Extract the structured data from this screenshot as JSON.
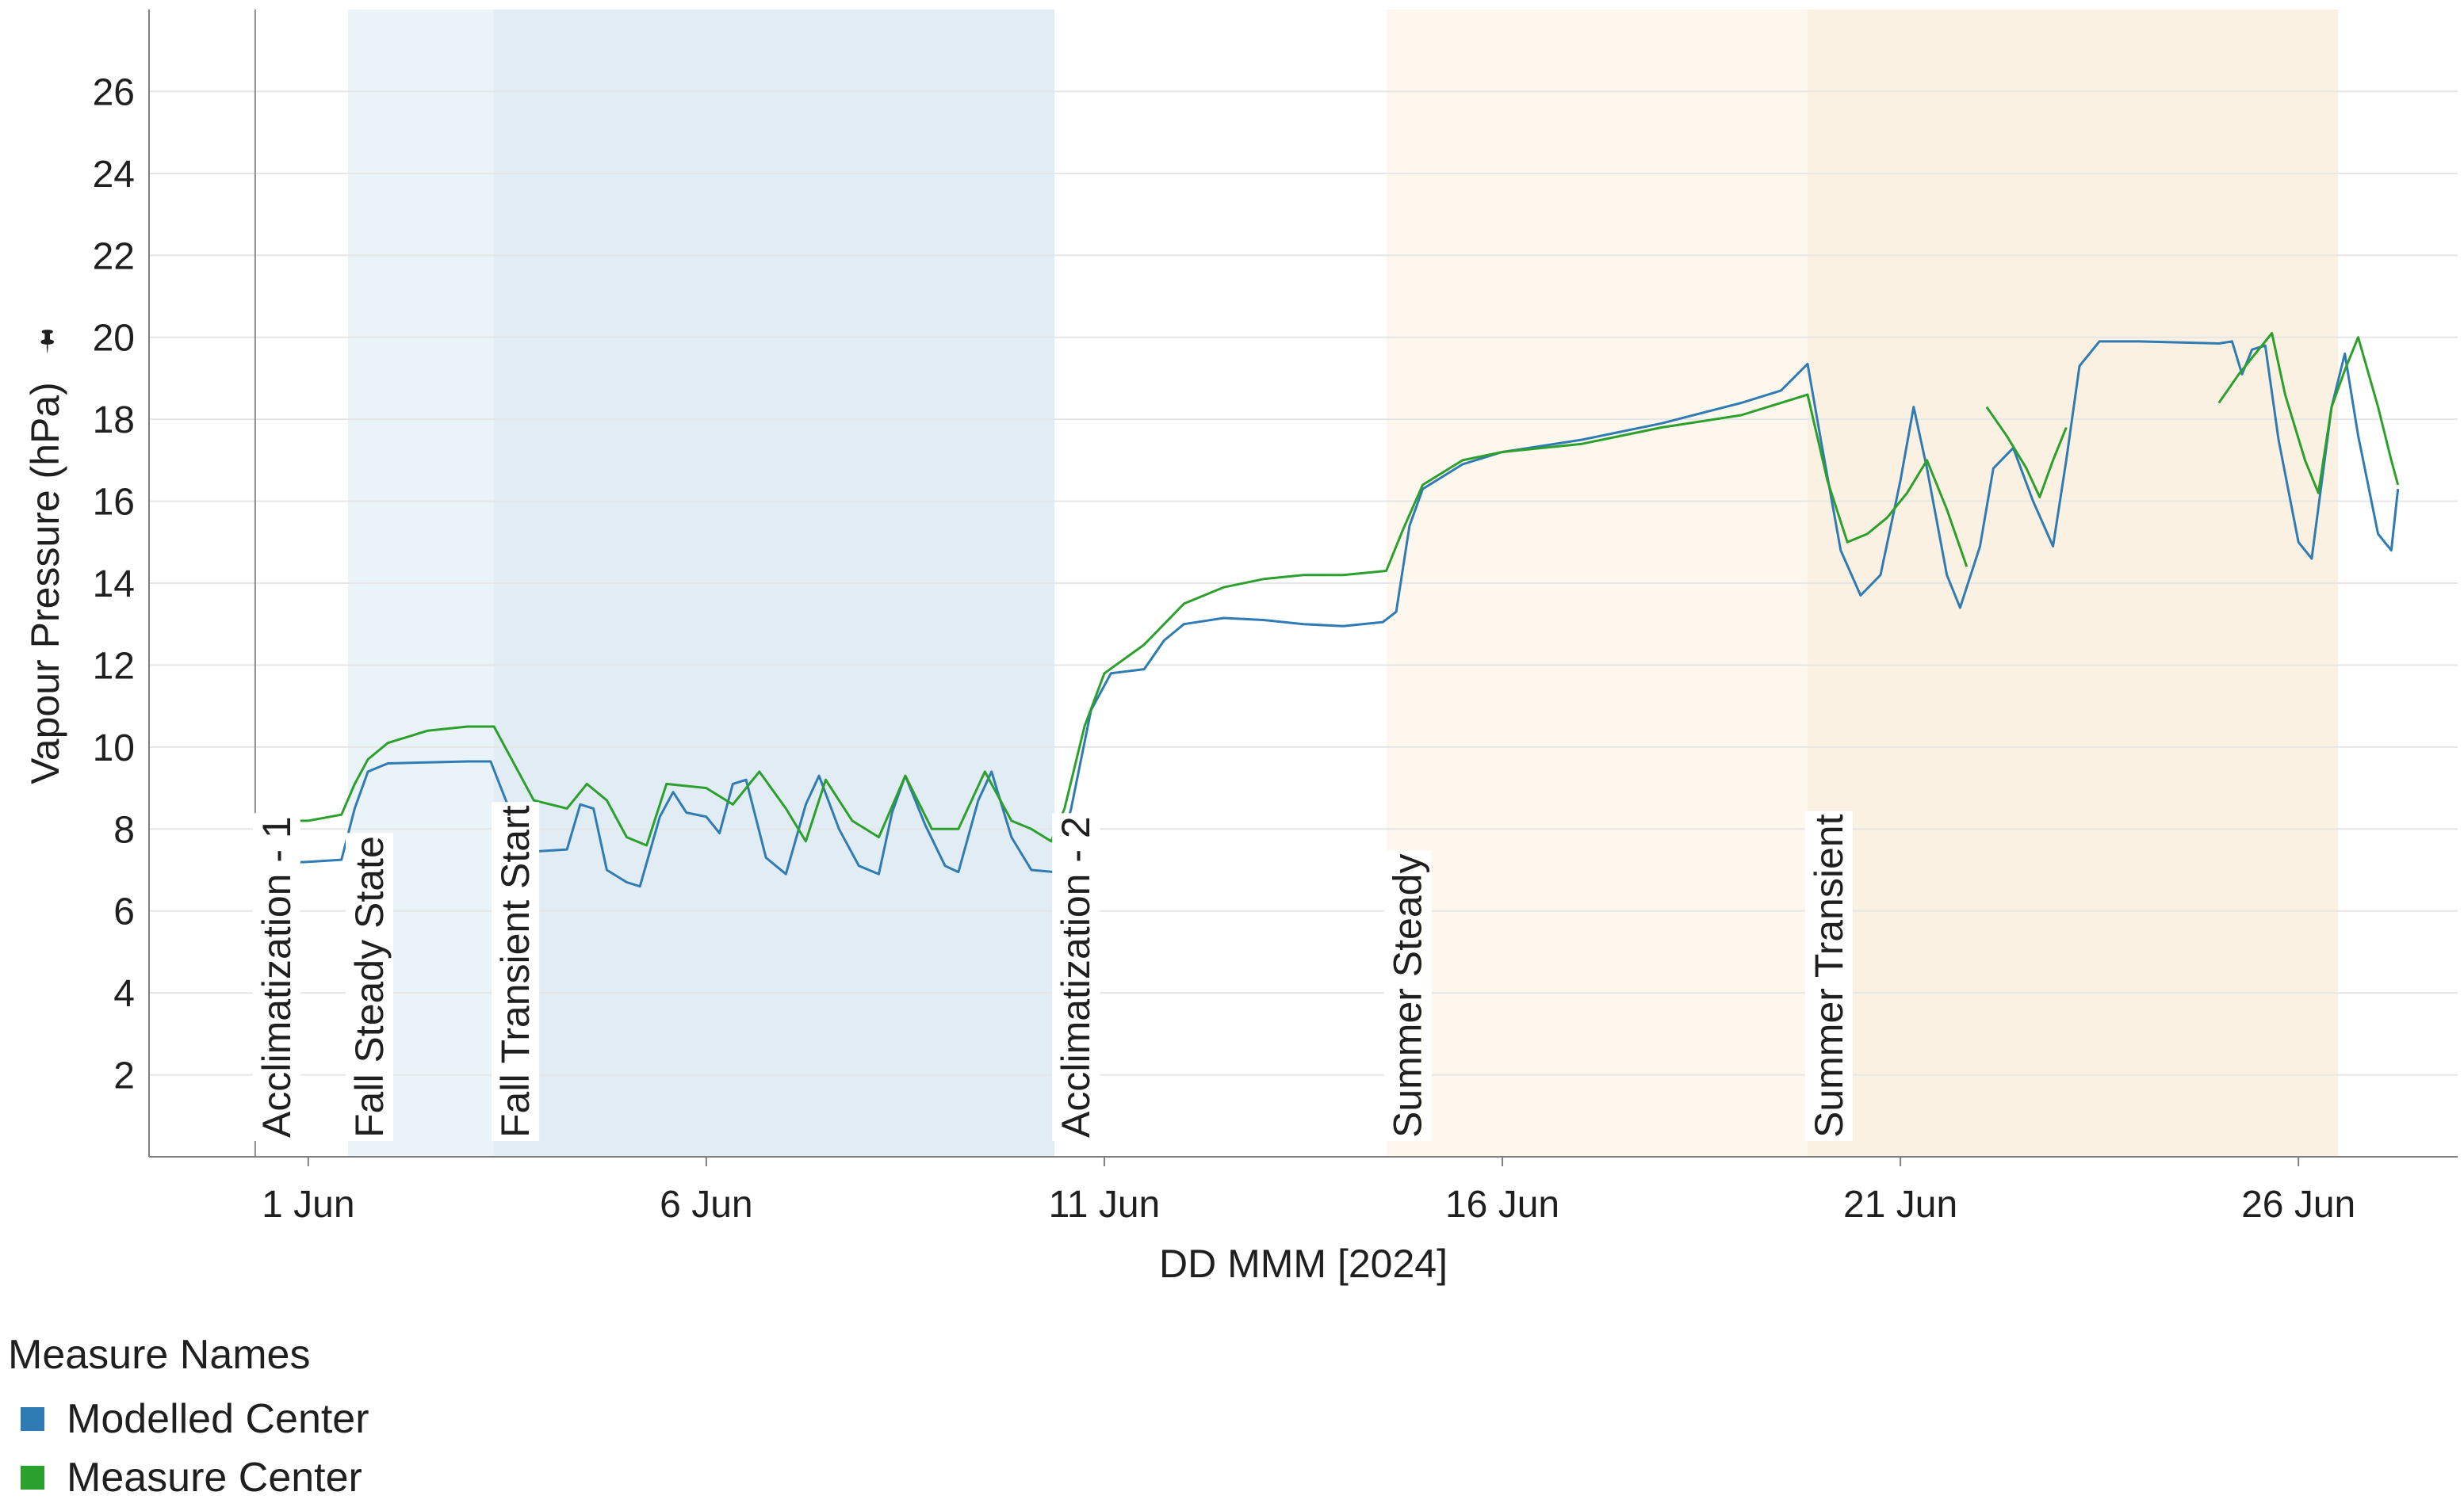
{
  "chart_data": {
    "type": "line",
    "title": "",
    "xlabel": "DD MMM [2024]",
    "ylabel": "Vapour Pressure (hPa)",
    "ylim": [
      0,
      28
    ],
    "xlim": [
      "2024-05-30",
      "2024-06-28"
    ],
    "grid": true,
    "y_ticks": [
      2,
      4,
      6,
      8,
      10,
      12,
      14,
      16,
      18,
      20,
      22,
      24,
      26
    ],
    "x_ticks": [
      {
        "date": "2024-06-01",
        "label": "1 Jun"
      },
      {
        "date": "2024-06-06",
        "label": "6 Jun"
      },
      {
        "date": "2024-06-11",
        "label": "11 Jun"
      },
      {
        "date": "2024-06-16",
        "label": "16 Jun"
      },
      {
        "date": "2024-06-21",
        "label": "21 Jun"
      },
      {
        "date": "2024-06-26",
        "label": "26 Jun"
      }
    ],
    "reference_line_date": "2024-05-31 08:00",
    "bands": [
      {
        "label": "Acclimatization - 1",
        "start": "2024-05-31 08:00",
        "end": "2024-06-01 12:00",
        "color": "#ffffff"
      },
      {
        "label": "Fall Steady State",
        "start": "2024-06-01 12:00",
        "end": "2024-06-03 08:00",
        "color": "#e9f3f8"
      },
      {
        "label": "Fall Transient Start",
        "start": "2024-06-03 08:00",
        "end": "2024-06-10 09:00",
        "color": "#e1ecf5"
      },
      {
        "label": "Acclimatization - 2",
        "start": "2024-06-10 09:00",
        "end": "2024-06-14 13:00",
        "color": "#ffffff"
      },
      {
        "label": "Summer Steady",
        "start": "2024-06-14 13:00",
        "end": "2024-06-19 20:00",
        "color": "#fdf7ee"
      },
      {
        "label": "Summer Transient",
        "start": "2024-06-19 20:00",
        "end": "2024-06-26 12:00",
        "color": "#fbf1e2"
      }
    ],
    "series": [
      {
        "name": "Modelled Center",
        "color": "#2f7bb3",
        "segments": [
          [
            [
              "2024-05-31 08:00",
              6.9
            ],
            [
              "2024-05-31 12:00",
              7.15
            ],
            [
              "2024-06-01 00:00",
              7.2
            ],
            [
              "2024-06-01 10:00",
              7.25
            ],
            [
              "2024-06-01 14:00",
              8.5
            ],
            [
              "2024-06-01 18:00",
              9.4
            ],
            [
              "2024-06-02 00:00",
              9.6
            ],
            [
              "2024-06-03 00:00",
              9.65
            ],
            [
              "2024-06-03 07:00",
              9.65
            ],
            [
              "2024-06-03 14:00",
              8.2
            ],
            [
              "2024-06-03 20:00",
              7.45
            ],
            [
              "2024-06-04 06:00",
              7.5
            ],
            [
              "2024-06-04 10:00",
              8.6
            ],
            [
              "2024-06-04 14:00",
              8.5
            ],
            [
              "2024-06-04 18:00",
              7.0
            ],
            [
              "2024-06-05 00:00",
              6.7
            ],
            [
              "2024-06-05 04:00",
              6.6
            ],
            [
              "2024-06-05 10:00",
              8.3
            ],
            [
              "2024-06-05 14:00",
              8.9
            ],
            [
              "2024-06-05 18:00",
              8.4
            ],
            [
              "2024-06-06 00:00",
              8.3
            ],
            [
              "2024-06-06 04:00",
              7.9
            ],
            [
              "2024-06-06 08:00",
              9.1
            ],
            [
              "2024-06-06 12:00",
              9.2
            ],
            [
              "2024-06-06 18:00",
              7.3
            ],
            [
              "2024-06-07 00:00",
              6.9
            ],
            [
              "2024-06-07 06:00",
              8.6
            ],
            [
              "2024-06-07 10:00",
              9.3
            ],
            [
              "2024-06-07 16:00",
              8.0
            ],
            [
              "2024-06-07 22:00",
              7.1
            ],
            [
              "2024-06-08 04:00",
              6.9
            ],
            [
              "2024-06-08 08:00",
              8.4
            ],
            [
              "2024-06-08 12:00",
              9.3
            ],
            [
              "2024-06-08 18:00",
              8.1
            ],
            [
              "2024-06-09 00:00",
              7.1
            ],
            [
              "2024-06-09 04:00",
              6.95
            ],
            [
              "2024-06-09 10:00",
              8.7
            ],
            [
              "2024-06-09 14:00",
              9.4
            ],
            [
              "2024-06-09 20:00",
              7.8
            ],
            [
              "2024-06-10 02:00",
              7.0
            ],
            [
              "2024-06-10 09:00",
              6.95
            ],
            [
              "2024-06-10 14:00",
              8.5
            ],
            [
              "2024-06-10 20:00",
              10.9
            ],
            [
              "2024-06-11 02:00",
              11.8
            ],
            [
              "2024-06-11 12:00",
              11.9
            ],
            [
              "2024-06-11 18:00",
              12.6
            ],
            [
              "2024-06-12 00:00",
              13.0
            ],
            [
              "2024-06-12 12:00",
              13.15
            ],
            [
              "2024-06-13 00:00",
              13.1
            ],
            [
              "2024-06-13 12:00",
              13.0
            ],
            [
              "2024-06-14 00:00",
              12.95
            ],
            [
              "2024-06-14 12:00",
              13.05
            ],
            [
              "2024-06-14 16:00",
              13.3
            ],
            [
              "2024-06-14 20:00",
              15.4
            ],
            [
              "2024-06-15 00:00",
              16.3
            ],
            [
              "2024-06-15 12:00",
              16.9
            ],
            [
              "2024-06-16 00:00",
              17.2
            ],
            [
              "2024-06-17 00:00",
              17.5
            ],
            [
              "2024-06-18 00:00",
              17.9
            ],
            [
              "2024-06-19 00:00",
              18.4
            ],
            [
              "2024-06-19 12:00",
              18.7
            ],
            [
              "2024-06-19 20:00",
              19.35
            ],
            [
              "2024-06-20 00:00",
              17.5
            ],
            [
              "2024-06-20 06:00",
              14.8
            ],
            [
              "2024-06-20 12:00",
              13.7
            ],
            [
              "2024-06-20 18:00",
              14.2
            ],
            [
              "2024-06-21 00:00",
              16.5
            ],
            [
              "2024-06-21 04:00",
              18.3
            ],
            [
              "2024-06-21 08:00",
              16.8
            ],
            [
              "2024-06-21 14:00",
              14.2
            ],
            [
              "2024-06-21 18:00",
              13.4
            ],
            [
              "2024-06-22 00:00",
              14.9
            ],
            [
              "2024-06-22 04:00",
              16.8
            ],
            [
              "2024-06-22 10:00",
              17.3
            ],
            [
              "2024-06-22 16:00",
              16.0
            ],
            [
              "2024-06-22 22:00",
              14.9
            ],
            [
              "2024-06-23 02:00",
              17.0
            ],
            [
              "2024-06-23 06:00",
              19.3
            ],
            [
              "2024-06-23 12:00",
              19.9
            ],
            [
              "2024-06-24 00:00",
              19.9
            ],
            [
              "2024-06-25 00:00",
              19.85
            ],
            [
              "2024-06-25 04:00",
              19.9
            ],
            [
              "2024-06-25 07:00",
              19.1
            ],
            [
              "2024-06-25 10:00",
              19.7
            ],
            [
              "2024-06-25 14:00",
              19.8
            ],
            [
              "2024-06-25 18:00",
              17.5
            ],
            [
              "2024-06-26 00:00",
              15.0
            ],
            [
              "2024-06-26 04:00",
              14.6
            ],
            [
              "2024-06-26 10:00",
              18.3
            ],
            [
              "2024-06-26 14:00",
              19.6
            ],
            [
              "2024-06-26 18:00",
              17.6
            ],
            [
              "2024-06-27 00:00",
              15.2
            ],
            [
              "2024-06-27 04:00",
              14.8
            ],
            [
              "2024-06-27 06:00",
              16.3
            ]
          ]
        ]
      },
      {
        "name": "Measure Center",
        "color": "#2ca02c",
        "segments": [
          [
            [
              "2024-05-31 08:00",
              8.2
            ],
            [
              "2024-06-01 00:00",
              8.2
            ],
            [
              "2024-06-01 10:00",
              8.35
            ],
            [
              "2024-06-01 14:00",
              9.1
            ],
            [
              "2024-06-01 18:00",
              9.7
            ],
            [
              "2024-06-02 00:00",
              10.1
            ],
            [
              "2024-06-02 12:00",
              10.4
            ],
            [
              "2024-06-03 00:00",
              10.5
            ],
            [
              "2024-06-03 08:00",
              10.5
            ],
            [
              "2024-06-03 14:00",
              9.6
            ],
            [
              "2024-06-03 20:00",
              8.7
            ],
            [
              "2024-06-04 06:00",
              8.5
            ],
            [
              "2024-06-04 12:00",
              9.1
            ],
            [
              "2024-06-04 18:00",
              8.7
            ],
            [
              "2024-06-05 00:00",
              7.8
            ],
            [
              "2024-06-05 06:00",
              7.6
            ],
            [
              "2024-06-05 12:00",
              9.1
            ],
            [
              "2024-06-06 00:00",
              9.0
            ],
            [
              "2024-06-06 08:00",
              8.6
            ],
            [
              "2024-06-06 16:00",
              9.4
            ],
            [
              "2024-06-07 00:00",
              8.5
            ],
            [
              "2024-06-07 06:00",
              7.7
            ],
            [
              "2024-06-07 12:00",
              9.2
            ],
            [
              "2024-06-07 20:00",
              8.2
            ],
            [
              "2024-06-08 04:00",
              7.8
            ],
            [
              "2024-06-08 12:00",
              9.3
            ],
            [
              "2024-06-08 20:00",
              8.0
            ],
            [
              "2024-06-09 04:00",
              8.0
            ],
            [
              "2024-06-09 12:00",
              9.4
            ],
            [
              "2024-06-09 20:00",
              8.2
            ],
            [
              "2024-06-10 02:00",
              8.0
            ],
            [
              "2024-06-10 08:00",
              7.7
            ],
            [
              "2024-06-10 12:00",
              8.5
            ],
            [
              "2024-06-10 18:00",
              10.5
            ],
            [
              "2024-06-11 00:00",
              11.8
            ],
            [
              "2024-06-11 12:00",
              12.5
            ],
            [
              "2024-06-12 00:00",
              13.5
            ],
            [
              "2024-06-12 12:00",
              13.9
            ],
            [
              "2024-06-13 00:00",
              14.1
            ],
            [
              "2024-06-13 12:00",
              14.2
            ],
            [
              "2024-06-14 00:00",
              14.2
            ],
            [
              "2024-06-14 13:00",
              14.3
            ],
            [
              "2024-06-14 18:00",
              15.3
            ],
            [
              "2024-06-15 00:00",
              16.4
            ],
            [
              "2024-06-15 12:00",
              17.0
            ],
            [
              "2024-06-16 00:00",
              17.2
            ],
            [
              "2024-06-17 00:00",
              17.4
            ],
            [
              "2024-06-18 00:00",
              17.8
            ],
            [
              "2024-06-19 00:00",
              18.1
            ],
            [
              "2024-06-19 20:00",
              18.6
            ],
            [
              "2024-06-20 02:00",
              16.5
            ],
            [
              "2024-06-20 08:00",
              15.0
            ],
            [
              "2024-06-20 14:00",
              15.2
            ],
            [
              "2024-06-20 20:00",
              15.6
            ],
            [
              "2024-06-21 02:00",
              16.2
            ],
            [
              "2024-06-21 08:00",
              17.0
            ],
            [
              "2024-06-21 14:00",
              15.8
            ],
            [
              "2024-06-21 20:00",
              14.4
            ]
          ],
          [
            [
              "2024-06-22 02:00",
              18.3
            ],
            [
              "2024-06-22 08:00",
              17.6
            ],
            [
              "2024-06-22 14:00",
              16.8
            ],
            [
              "2024-06-22 18:00",
              16.1
            ],
            [
              "2024-06-22 22:00",
              17.0
            ],
            [
              "2024-06-23 02:00",
              17.8
            ]
          ],
          [
            [
              "2024-06-25 00:00",
              18.4
            ],
            [
              "2024-06-25 06:00",
              19.1
            ],
            [
              "2024-06-25 12:00",
              19.7
            ],
            [
              "2024-06-25 16:00",
              20.1
            ],
            [
              "2024-06-25 20:00",
              18.6
            ],
            [
              "2024-06-26 02:00",
              17.0
            ],
            [
              "2024-06-26 06:00",
              16.2
            ],
            [
              "2024-06-26 10:00",
              18.3
            ],
            [
              "2024-06-26 14:00",
              19.2
            ],
            [
              "2024-06-26 18:00",
              20.0
            ],
            [
              "2024-06-27 00:00",
              18.3
            ],
            [
              "2024-06-27 04:00",
              17.0
            ],
            [
              "2024-06-27 06:00",
              16.4
            ]
          ]
        ]
      }
    ]
  },
  "legend": {
    "title": "Measure Names",
    "items": [
      {
        "label": "Modelled Center",
        "color": "#2f7bb3"
      },
      {
        "label": "Measure Center",
        "color": "#2ca02c"
      }
    ]
  }
}
